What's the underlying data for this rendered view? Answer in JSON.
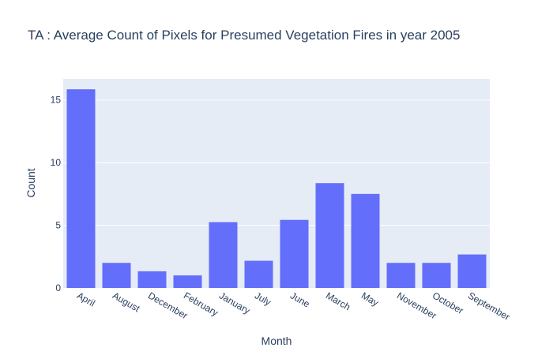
{
  "chart_data": {
    "type": "bar",
    "title": "TA : Average Count of Pixels for Presumed Vegetation Fires in year 2005",
    "xlabel": "Month",
    "ylabel": "Count",
    "categories": [
      "April",
      "August",
      "December",
      "February",
      "January",
      "July",
      "June",
      "March",
      "May",
      "November",
      "October",
      "September"
    ],
    "values": [
      15.85,
      2.0,
      1.33,
      1.0,
      5.25,
      2.17,
      5.43,
      8.36,
      7.5,
      2.0,
      2.0,
      2.67
    ],
    "ylim": [
      0,
      16.68
    ],
    "yticks": [
      0,
      5,
      10,
      15
    ],
    "ytick_labels": [
      "0",
      "5",
      "10",
      "15"
    ],
    "grid": true,
    "colors": {
      "bar": "#636efa",
      "plot_bg": "#e5ecf6",
      "grid": "#ffffff",
      "text": "#2a3f5f"
    }
  }
}
